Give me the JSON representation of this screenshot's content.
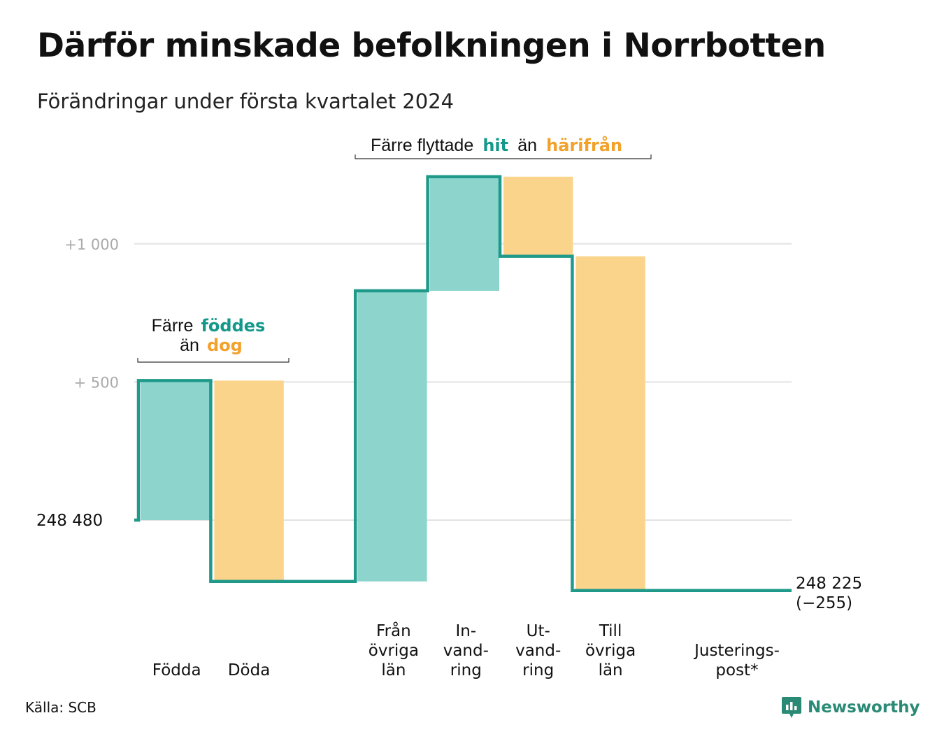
{
  "title": "Därför minskade befolkningen i Norrbotten",
  "subtitle": "Förändringar under första kvartalet 2024",
  "source": "Källa: SCB",
  "brand": "Newsworthy",
  "colors": {
    "increase": "#8dd5cc",
    "decrease": "#fad48b",
    "line": "#1f9a8a",
    "grid": "#e3e3e3",
    "tick_text": "#aaaaaa",
    "teal_text": "#14988a",
    "orange_text": "#f2a12a"
  },
  "annotations": {
    "births": {
      "line1": "Färre",
      "highlight1": "föddes",
      "line2": "än",
      "highlight2": "dog"
    },
    "migration": {
      "text1": "Färre flyttade",
      "highlight1": "hit",
      "text2": "än",
      "highlight2": "härifrån"
    }
  },
  "chart_data": {
    "type": "waterfall",
    "start_label": "248 480",
    "end_label": "248 225",
    "end_change_label": "(−255)",
    "start_value": 248480,
    "end_value": 248225,
    "y_ticks": [
      {
        "value": 500,
        "label": "+ 500"
      },
      {
        "value": 1000,
        "label": "+1 000"
      }
    ],
    "steps": [
      {
        "label_lines": [
          "Födda"
        ],
        "change": 505,
        "kind": "increase"
      },
      {
        "label_lines": [
          "Döda"
        ],
        "change": -727,
        "kind": "decrease"
      },
      {
        "label_lines": [
          ""
        ],
        "change": 0,
        "kind": "gap"
      },
      {
        "label_lines": [
          "Från",
          "övriga",
          "län"
        ],
        "change": 1052,
        "kind": "increase"
      },
      {
        "label_lines": [
          "In-",
          "vand-",
          "ring"
        ],
        "change": 413,
        "kind": "increase"
      },
      {
        "label_lines": [
          "Ut-",
          "vand-",
          "ring"
        ],
        "change": -288,
        "kind": "decrease"
      },
      {
        "label_lines": [
          "Till",
          "övriga",
          "län"
        ],
        "change": -1210,
        "kind": "decrease"
      },
      {
        "label_lines": [
          "Justerings-",
          "post*"
        ],
        "change": 0,
        "kind": "adjustment"
      }
    ],
    "grid": true
  }
}
